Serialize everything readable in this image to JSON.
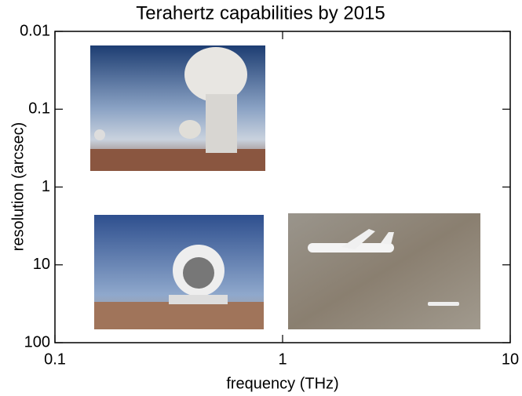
{
  "chart_data": {
    "type": "scatter",
    "title": "Terahertz capabilities by 2015",
    "x_label": "frequency (THz)",
    "y_label": "resolution (arcsec)",
    "xscale": "log",
    "yscale": "log",
    "y_inverted": true,
    "xlim": [
      0.1,
      10
    ],
    "xticks": [
      0.1,
      1,
      10
    ],
    "ylim": [
      0.01,
      100
    ],
    "yticks": [
      0.01,
      0.1,
      1,
      10,
      100
    ]
  }
}
